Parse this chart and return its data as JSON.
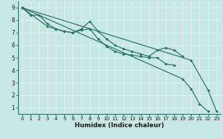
{
  "xlabel": "Humidex (Indice chaleur)",
  "xlim": [
    -0.5,
    23.5
  ],
  "ylim": [
    0.5,
    9.5
  ],
  "xticks": [
    0,
    1,
    2,
    3,
    4,
    5,
    6,
    7,
    8,
    9,
    10,
    11,
    12,
    13,
    14,
    15,
    16,
    17,
    18,
    19,
    20,
    21,
    22,
    23
  ],
  "yticks": [
    1,
    2,
    3,
    4,
    5,
    6,
    7,
    8,
    9
  ],
  "bg_color": "#c6e8e4",
  "line_color": "#2a7068",
  "grid_color": "#f0f0f0",
  "lines": [
    {
      "x": [
        0,
        1,
        2,
        3,
        4,
        5,
        6,
        7,
        8,
        9,
        10,
        11,
        12,
        13,
        14,
        15,
        16,
        17,
        18
      ],
      "y": [
        9.0,
        8.4,
        8.4,
        7.7,
        7.3,
        7.1,
        7.0,
        7.2,
        7.3,
        6.5,
        5.9,
        5.5,
        5.3,
        5.2,
        5.1,
        5.0,
        5.0,
        4.5,
        4.4
      ]
    },
    {
      "x": [
        0,
        3,
        4,
        5,
        6,
        7,
        8,
        9,
        10,
        11,
        12,
        13,
        14,
        15,
        16,
        17,
        18,
        19
      ],
      "y": [
        9.0,
        7.5,
        7.3,
        7.1,
        7.0,
        7.3,
        7.9,
        7.1,
        6.5,
        6.0,
        5.7,
        5.5,
        5.3,
        5.1,
        5.6,
        5.8,
        5.6,
        5.1
      ]
    },
    {
      "x": [
        0,
        19,
        20,
        21,
        22
      ],
      "y": [
        9.0,
        3.3,
        2.5,
        1.3,
        0.7
      ]
    },
    {
      "x": [
        0,
        20,
        22,
        23
      ],
      "y": [
        9.0,
        4.8,
        2.4,
        0.7
      ]
    }
  ]
}
